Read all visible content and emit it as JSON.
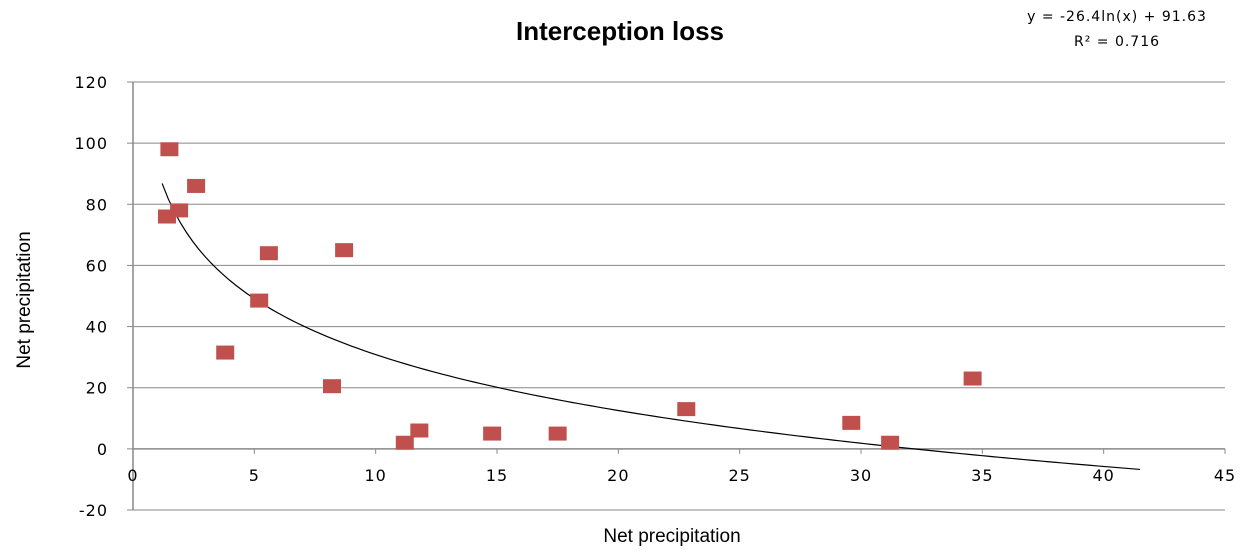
{
  "chart_data": {
    "type": "scatter",
    "title": "Interception loss",
    "xlabel": "Net precipitation",
    "ylabel": "Net precipitation",
    "xlim": [
      0,
      45
    ],
    "ylim": [
      -20,
      120
    ],
    "x_ticks": [
      "0",
      "5",
      "10",
      "15",
      "20",
      "25",
      "30",
      "35",
      "40",
      "45"
    ],
    "y_ticks": [
      "-20",
      "0",
      "20",
      "40",
      "60",
      "80",
      "100",
      "120"
    ],
    "grid": "horizontal",
    "marker_color": "#c0504d",
    "trendline_color": "#000000",
    "series": [
      {
        "points": [
          {
            "x": 1.5,
            "y": 98
          },
          {
            "x": 2.6,
            "y": 86
          },
          {
            "x": 1.4,
            "y": 76
          },
          {
            "x": 1.9,
            "y": 78
          },
          {
            "x": 5.6,
            "y": 64
          },
          {
            "x": 8.7,
            "y": 65
          },
          {
            "x": 5.2,
            "y": 48.5
          },
          {
            "x": 3.8,
            "y": 31.5
          },
          {
            "x": 8.2,
            "y": 20.5
          },
          {
            "x": 11.2,
            "y": 2
          },
          {
            "x": 11.8,
            "y": 6
          },
          {
            "x": 14.8,
            "y": 5
          },
          {
            "x": 17.5,
            "y": 5
          },
          {
            "x": 22.8,
            "y": 13
          },
          {
            "x": 29.6,
            "y": 8.5
          },
          {
            "x": 31.2,
            "y": 2
          },
          {
            "x": 34.6,
            "y": 23
          }
        ]
      }
    ],
    "trendline": {
      "type": "logarithmic",
      "a": -26.4,
      "b": 91.63,
      "x_range": [
        1.2,
        41.5
      ],
      "equation": "y = -26.4ln(x) + 91.63",
      "r2": "R² = 0.716"
    }
  }
}
